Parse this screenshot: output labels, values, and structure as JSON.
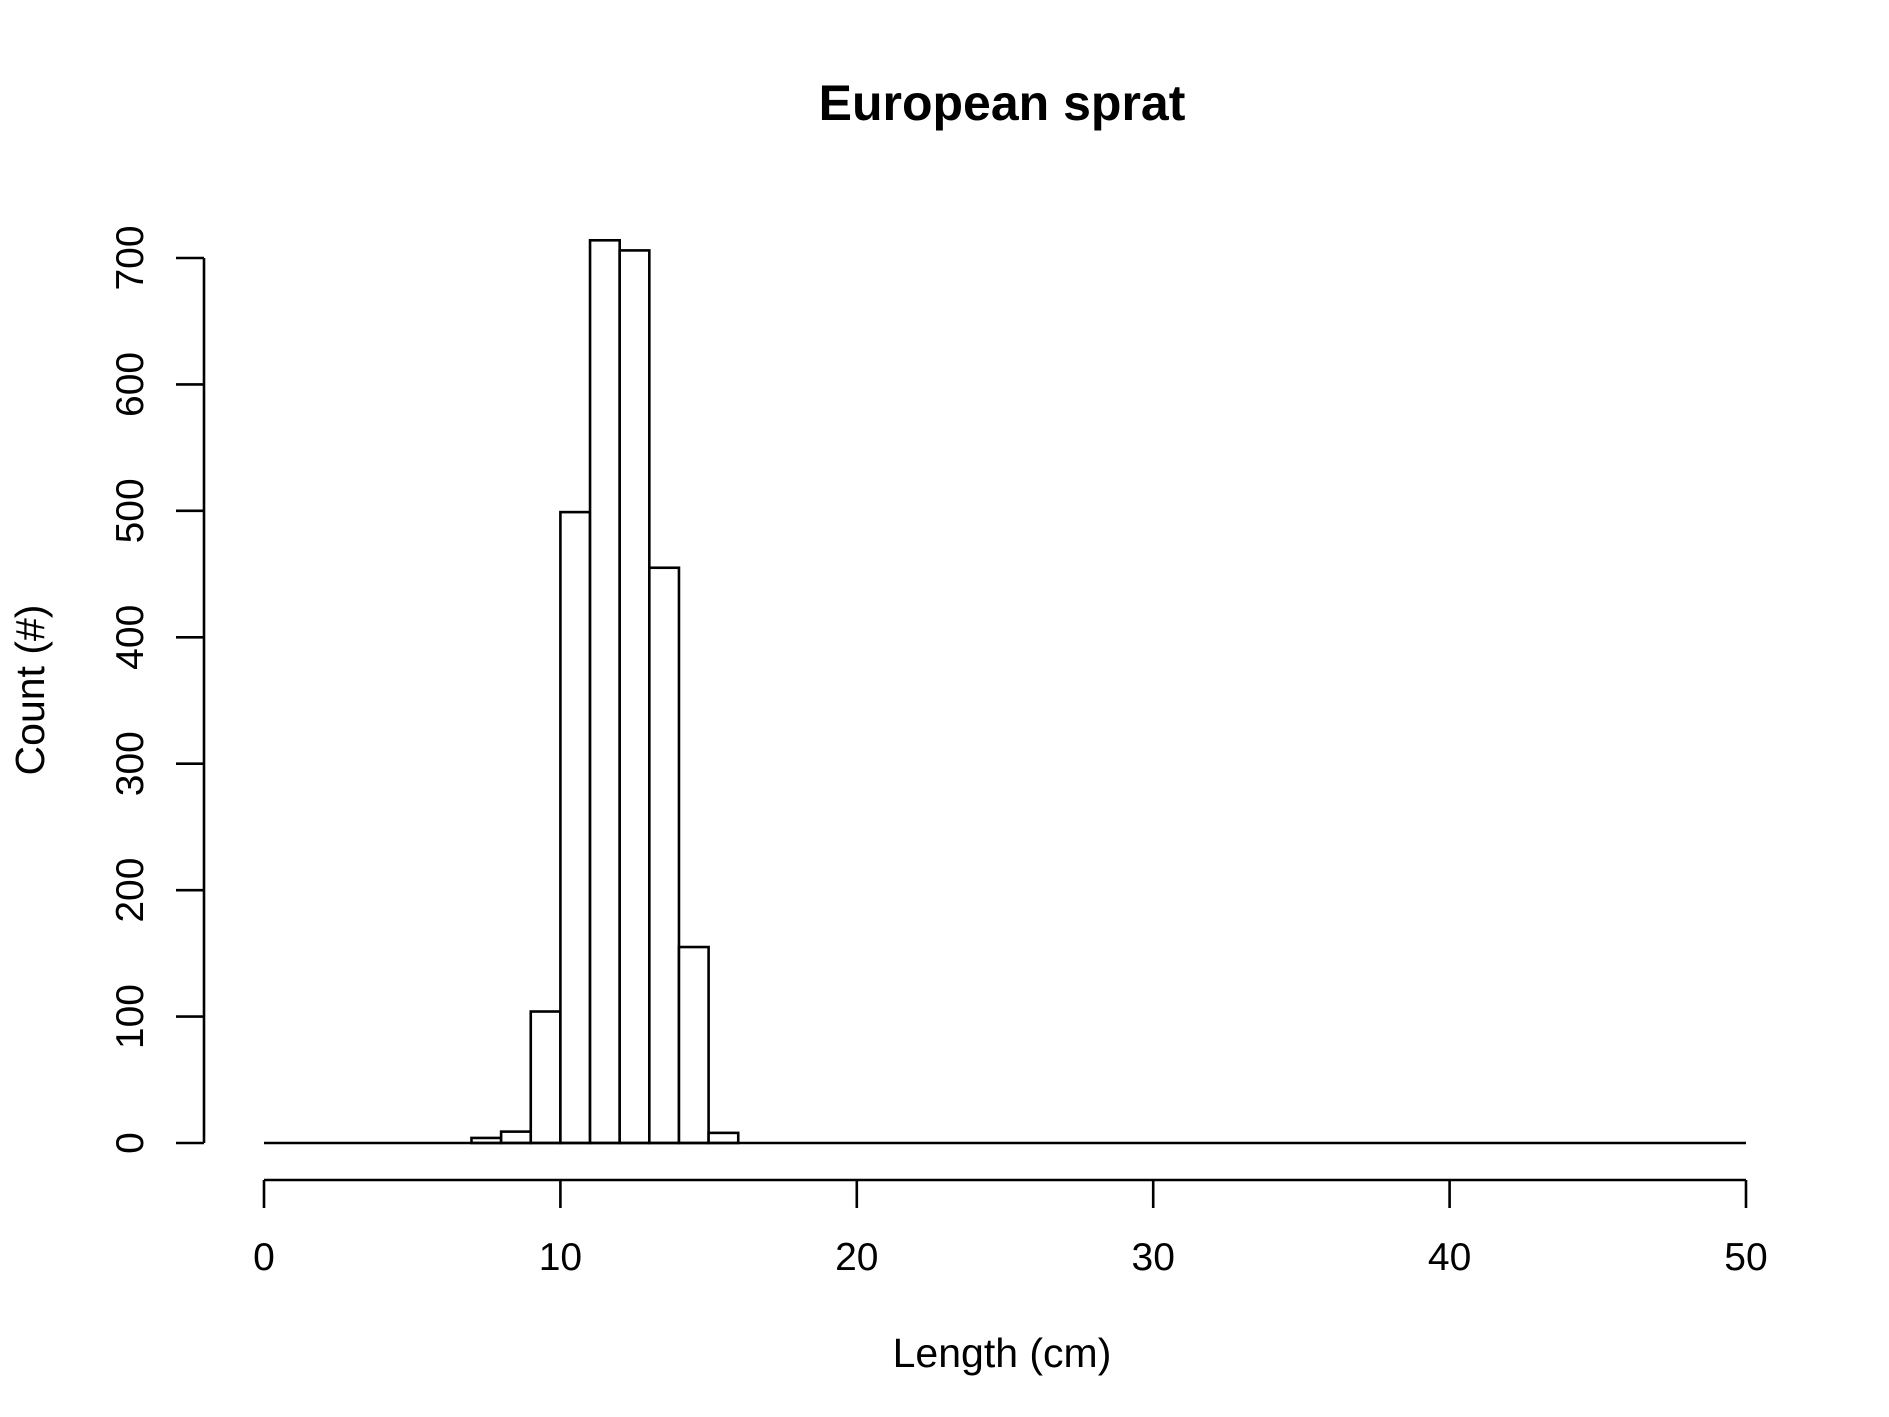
{
  "chart_data": {
    "type": "bar",
    "title": "European sprat",
    "xlabel": "Length (cm)",
    "ylabel": "Count (#)",
    "xlim": [
      0,
      50
    ],
    "ylim": [
      0,
      700
    ],
    "x_ticks": [
      0,
      10,
      20,
      30,
      40,
      50
    ],
    "y_ticks": [
      0,
      100,
      200,
      300,
      400,
      500,
      600,
      700
    ],
    "bin_width": 1,
    "bins": [
      {
        "start": 7,
        "end": 8,
        "count": 4
      },
      {
        "start": 8,
        "end": 9,
        "count": 9
      },
      {
        "start": 9,
        "end": 10,
        "count": 104
      },
      {
        "start": 10,
        "end": 11,
        "count": 499
      },
      {
        "start": 11,
        "end": 12,
        "count": 714
      },
      {
        "start": 12,
        "end": 13,
        "count": 706
      },
      {
        "start": 13,
        "end": 14,
        "count": 455
      },
      {
        "start": 14,
        "end": 15,
        "count": 155
      },
      {
        "start": 15,
        "end": 16,
        "count": 8
      }
    ],
    "grid": false,
    "legend": "none"
  }
}
